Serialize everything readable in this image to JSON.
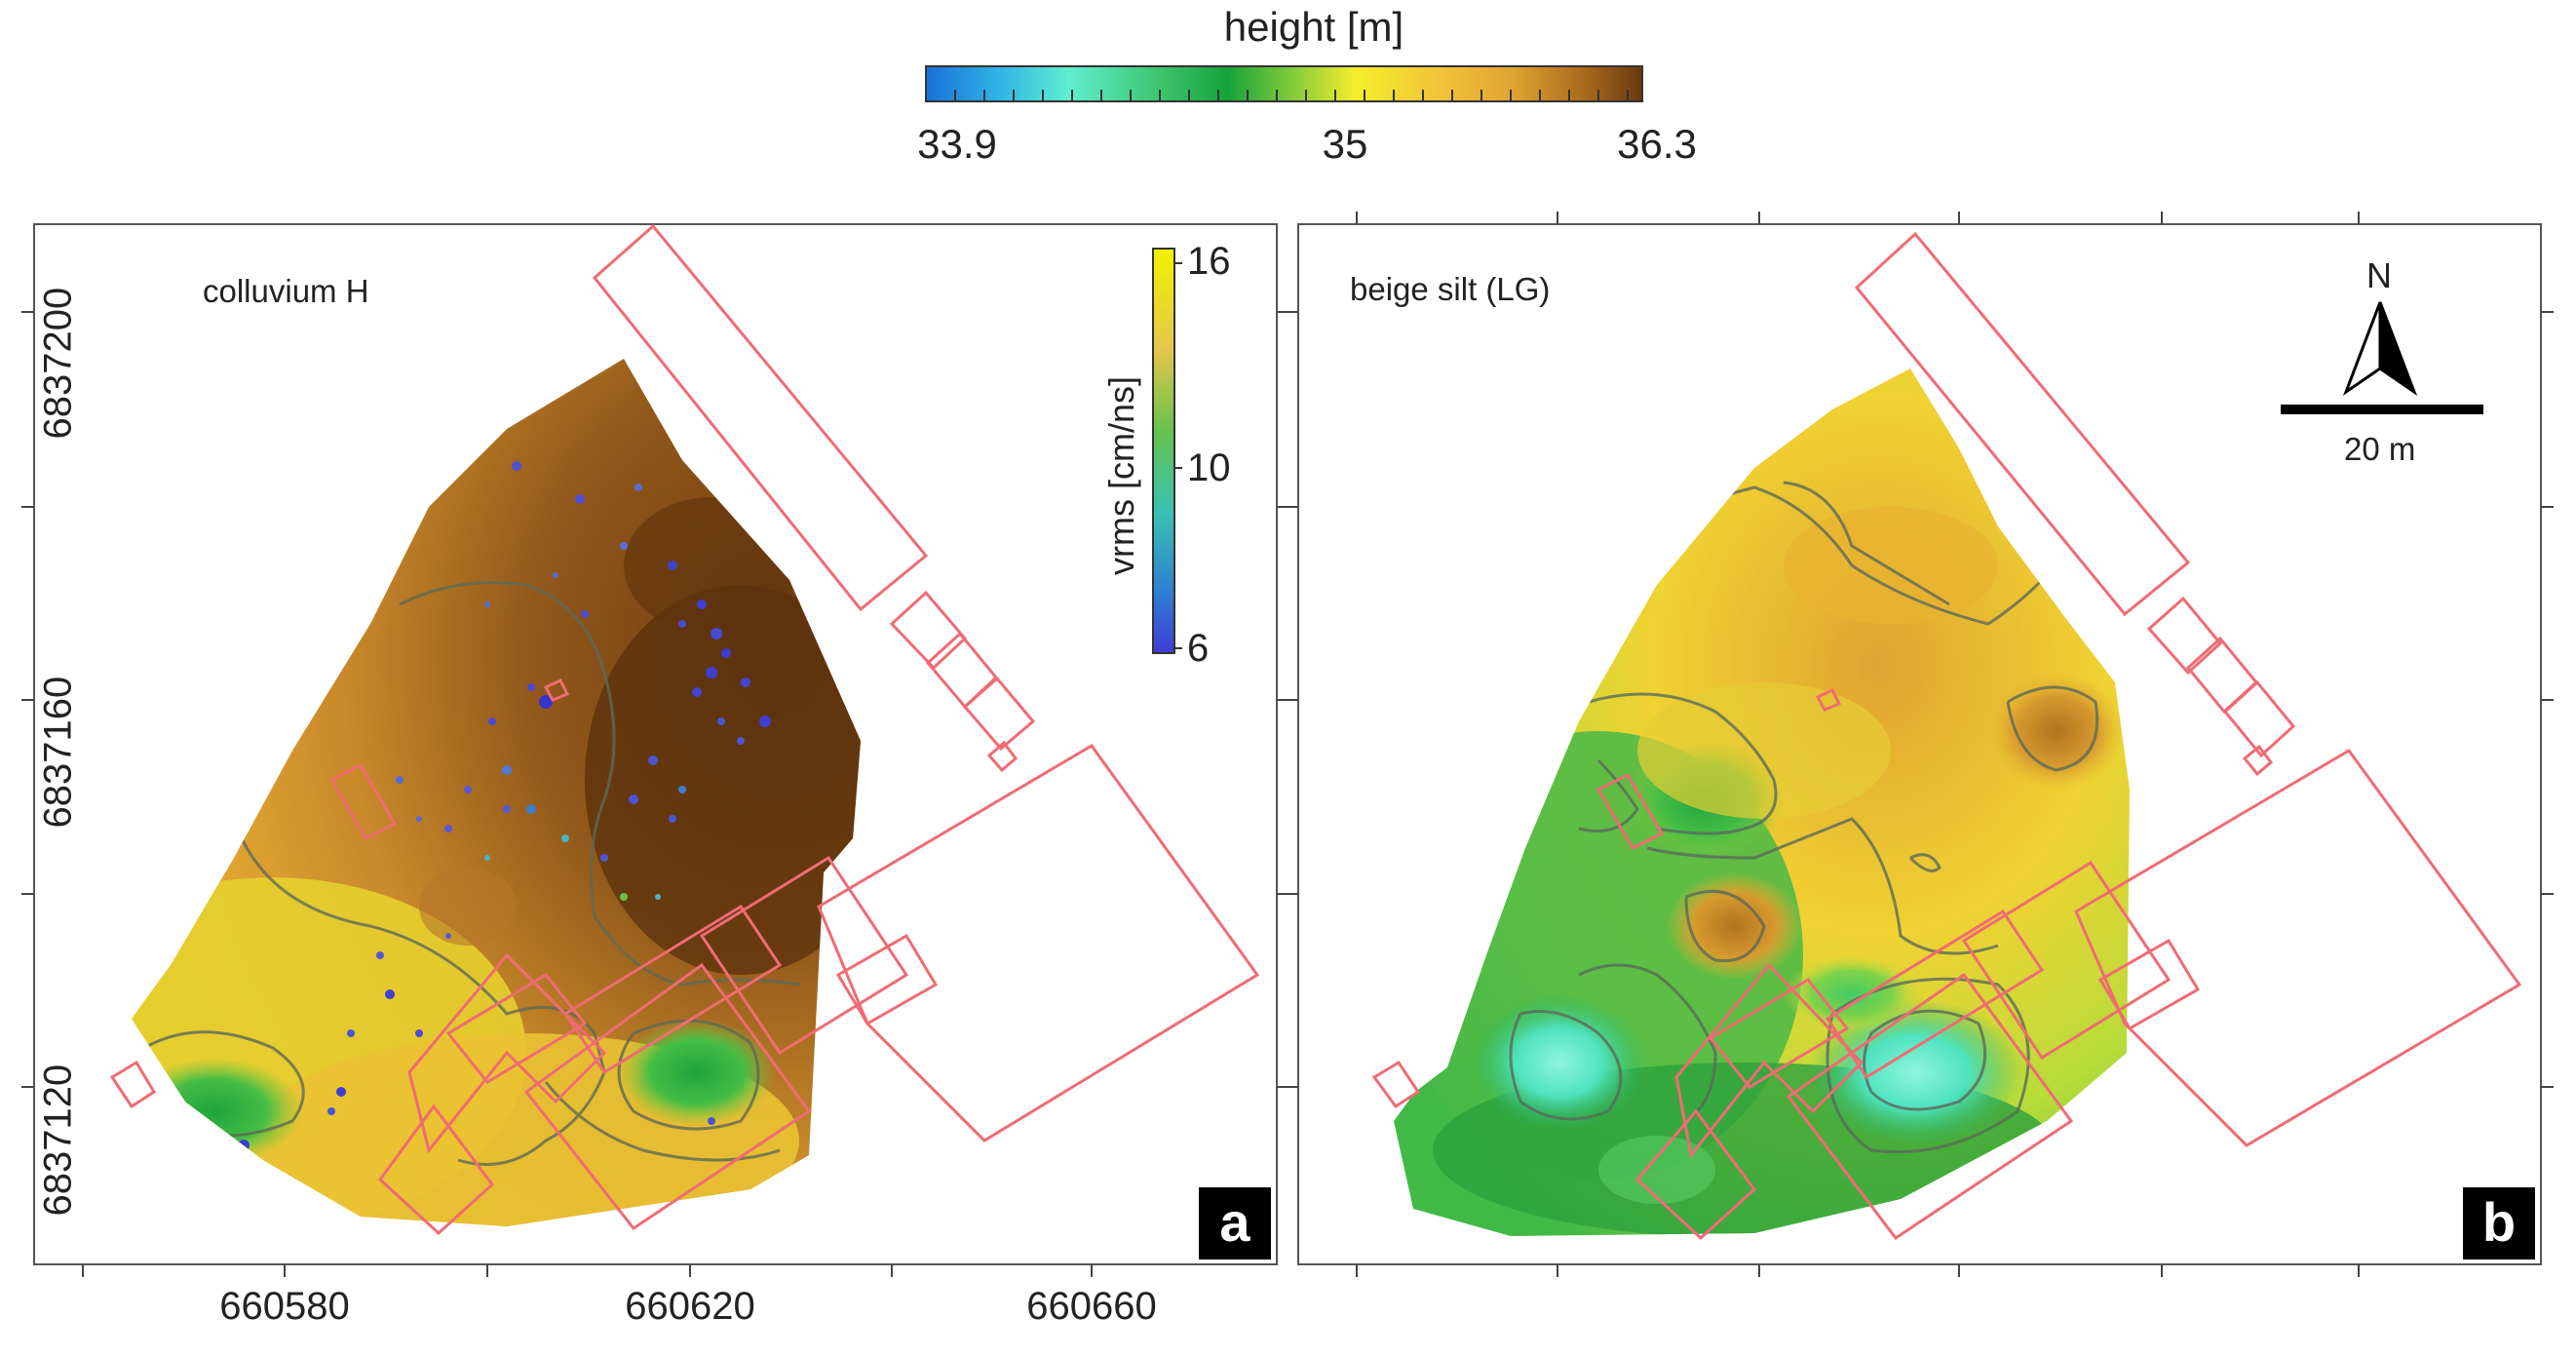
{
  "colorbar": {
    "title": "height [m]",
    "ticks": [
      "33.9",
      "35",
      "36.3"
    ],
    "min": 33.9,
    "max": 36.3,
    "colors": [
      "#1a6fd6",
      "#2fb3e6",
      "#5fefcf",
      "#3cc36b",
      "#16a33a",
      "#8ccf3a",
      "#f4ee2a",
      "#f2c23a",
      "#e0a331",
      "#a8691c",
      "#6a3a0f"
    ]
  },
  "axes": {
    "y_ticks": [
      "6837200",
      "6837160",
      "6837120"
    ],
    "x_ticks": [
      "660580",
      "660620",
      "660660"
    ]
  },
  "panel_a": {
    "title": "colluvium H",
    "letter": "a",
    "vrms": {
      "label": "vrms [cm/ns]",
      "ticks": [
        "16",
        "10",
        "6"
      ],
      "colors": [
        "#f3f200",
        "#3bc1b3",
        "#3e3bd6"
      ]
    }
  },
  "panel_b": {
    "title": "beige silt (LG)",
    "letter": "b"
  },
  "scalebar": {
    "label": "20 m"
  },
  "north": {
    "label": "N"
  },
  "outline_color": "#f06b73"
}
